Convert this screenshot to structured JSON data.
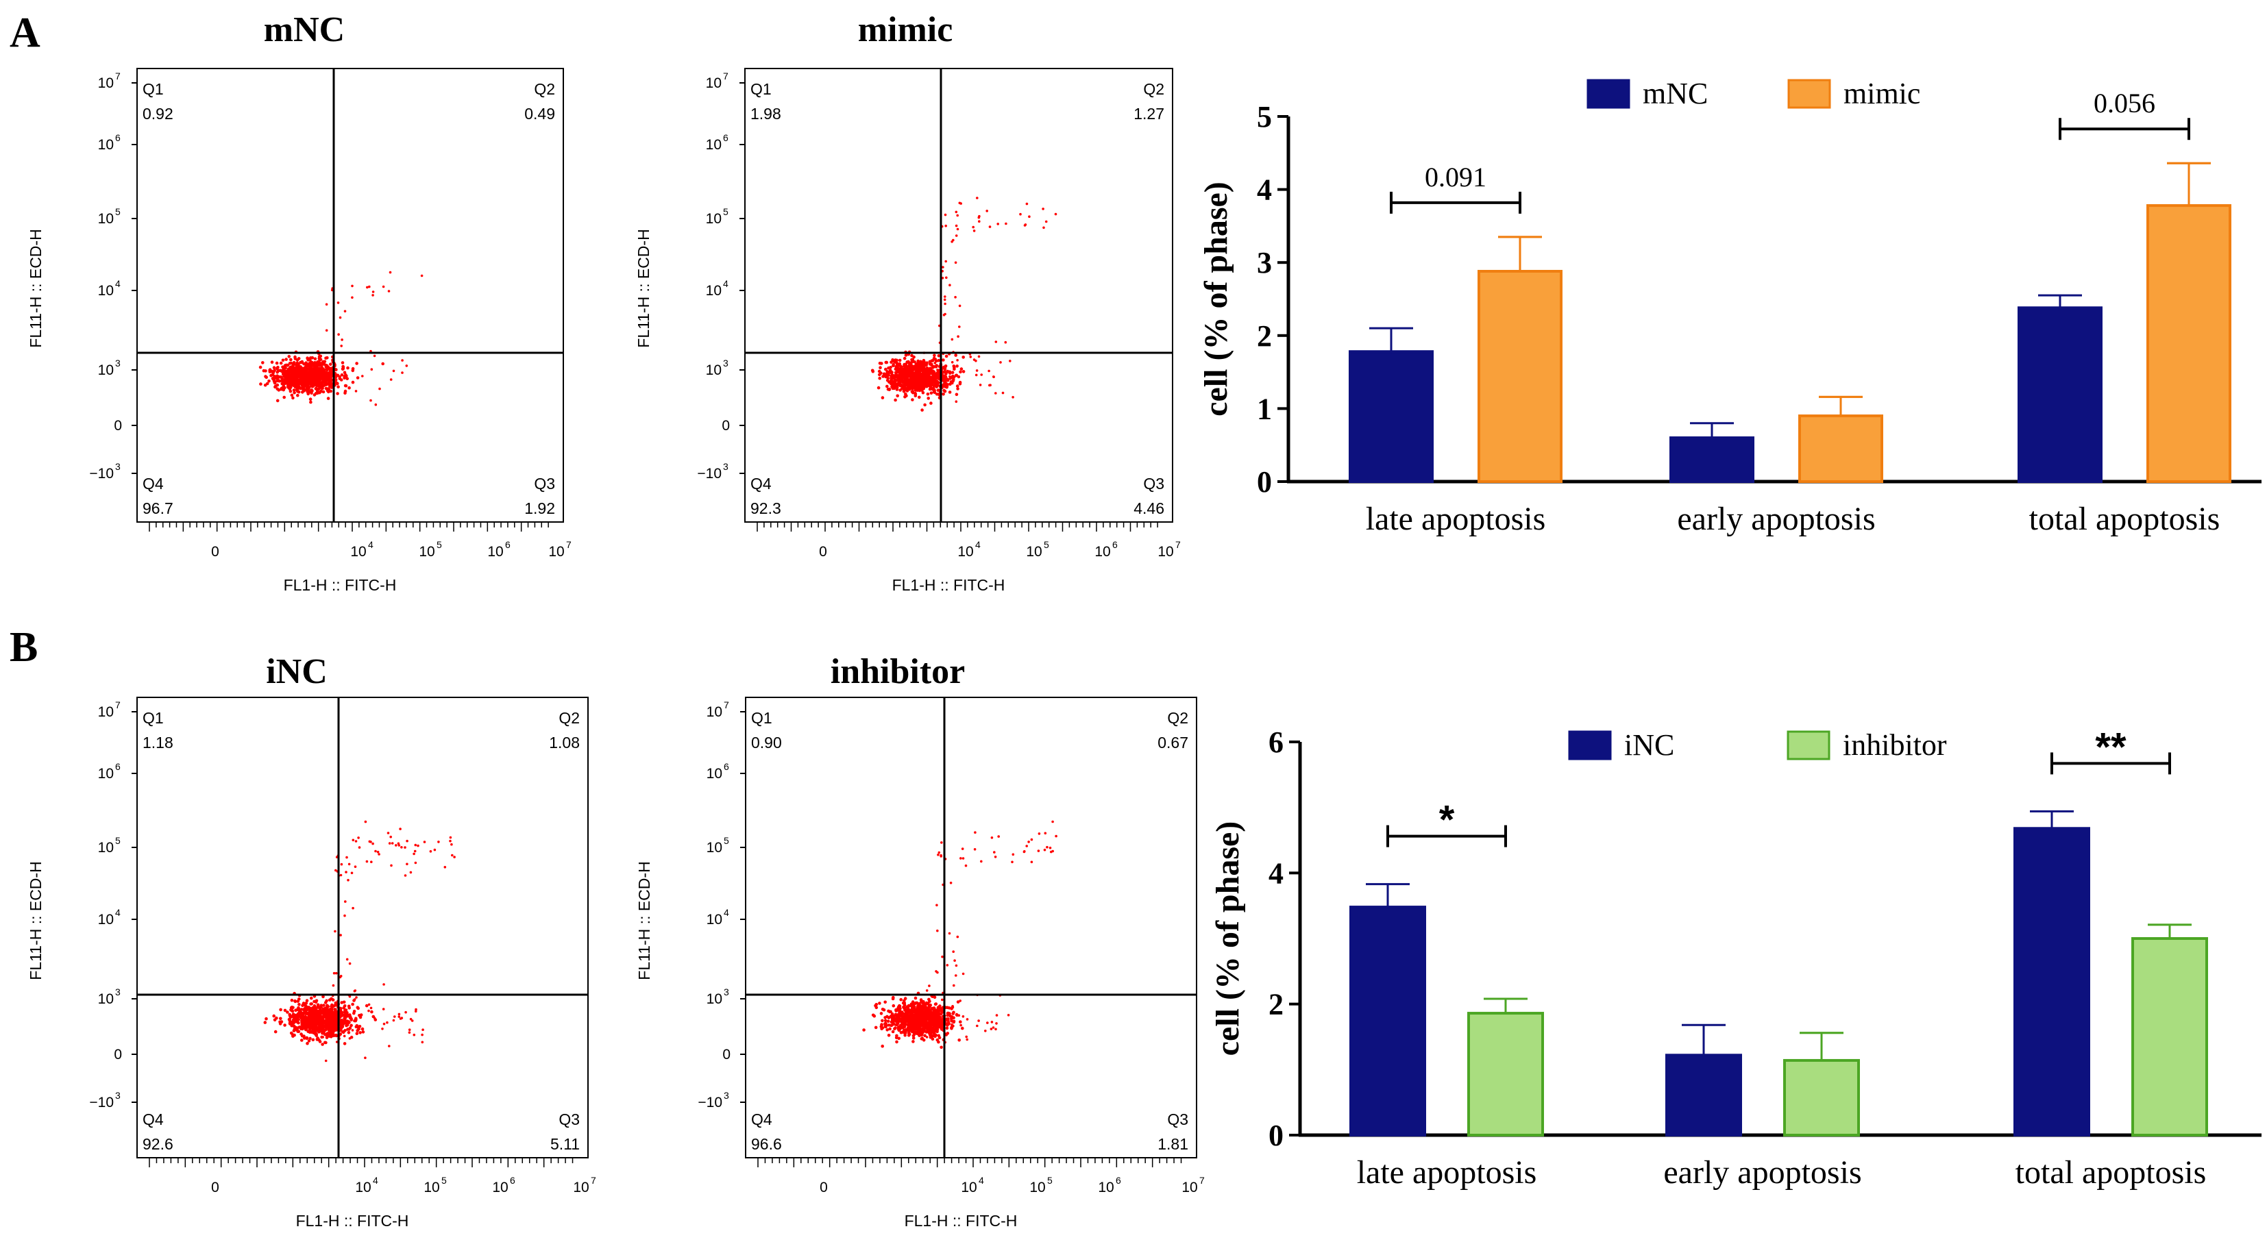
{
  "panel_labels": [
    "A",
    "B"
  ],
  "flow_plots": [
    {
      "title": "mNC",
      "xlabel": "FL1-H :: FITC-H",
      "ylabel": "FL11-H :: ECD-H",
      "quadrants": {
        "Q1": {
          "name": "Q1",
          "value": "0.92"
        },
        "Q2": {
          "name": "Q2",
          "value": "0.49"
        },
        "Q3": {
          "name": "Q3",
          "value": "1.92"
        },
        "Q4": {
          "name": "Q4",
          "value": "96.7"
        }
      }
    },
    {
      "title": "mimic",
      "xlabel": "FL1-H :: FITC-H",
      "ylabel": "FL11-H :: ECD-H",
      "quadrants": {
        "Q1": {
          "name": "Q1",
          "value": "1.98"
        },
        "Q2": {
          "name": "Q2",
          "value": "1.27"
        },
        "Q3": {
          "name": "Q3",
          "value": "4.46"
        },
        "Q4": {
          "name": "Q4",
          "value": "92.3"
        }
      }
    },
    {
      "title": "iNC",
      "xlabel": "FL1-H :: FITC-H",
      "ylabel": "FL11-H :: ECD-H",
      "quadrants": {
        "Q1": {
          "name": "Q1",
          "value": "1.18"
        },
        "Q2": {
          "name": "Q2",
          "value": "1.08"
        },
        "Q3": {
          "name": "Q3",
          "value": "5.11"
        },
        "Q4": {
          "name": "Q4",
          "value": "92.6"
        }
      }
    },
    {
      "title": "inhibitor",
      "xlabel": "FL1-H :: FITC-H",
      "ylabel": "FL11-H :: ECD-H",
      "quadrants": {
        "Q1": {
          "name": "Q1",
          "value": "0.90"
        },
        "Q2": {
          "name": "Q2",
          "value": "0.67"
        },
        "Q3": {
          "name": "Q3",
          "value": "1.81"
        },
        "Q4": {
          "name": "Q4",
          "value": "96.6"
        }
      }
    }
  ],
  "flow_axis_ticks": {
    "y": [
      {
        "base": "10",
        "exp": "7"
      },
      {
        "base": "10",
        "exp": "6"
      },
      {
        "base": "10",
        "exp": "5"
      },
      {
        "base": "10",
        "exp": "4"
      },
      {
        "base": "10",
        "exp": "3"
      },
      {
        "base": "0",
        "exp": ""
      },
      {
        "base": "−10",
        "exp": "3"
      }
    ],
    "x": [
      {
        "base": "0",
        "exp": ""
      },
      {
        "base": "10",
        "exp": "4"
      },
      {
        "base": "10",
        "exp": "5"
      },
      {
        "base": "10",
        "exp": "6"
      },
      {
        "base": "10",
        "exp": "7"
      }
    ]
  },
  "chart_data": [
    {
      "type": "bar",
      "panel": "A",
      "categories": [
        "late apoptosis",
        "early apoptosis",
        "total apoptosis"
      ],
      "series": [
        {
          "name": "mNC",
          "color": "#0d117e",
          "values": [
            1.78,
            0.6,
            2.38
          ],
          "errors": [
            0.32,
            0.2,
            0.17
          ]
        },
        {
          "name": "mimic",
          "color": "#f9a03a",
          "values": [
            2.88,
            0.9,
            3.78
          ],
          "errors": [
            0.47,
            0.26,
            0.58
          ]
        }
      ],
      "ylabel": "cell (% of phase)",
      "ylim": [
        0,
        5
      ],
      "yticks": [
        "0",
        "1",
        "2",
        "3",
        "4",
        "5"
      ],
      "annotations": [
        {
          "category": "late apoptosis",
          "text": "0.091"
        },
        {
          "category": "total apoptosis",
          "text": "0.056"
        }
      ]
    },
    {
      "type": "bar",
      "panel": "B",
      "categories": [
        "late apoptosis",
        "early apoptosis",
        "total apoptosis"
      ],
      "series": [
        {
          "name": "iNC",
          "color": "#0d117e",
          "values": [
            3.48,
            1.22,
            4.68
          ],
          "errors": [
            0.35,
            0.46,
            0.26
          ]
        },
        {
          "name": "inhibitor",
          "color": "#a9dd7f",
          "values": [
            1.86,
            1.14,
            3.0
          ],
          "errors": [
            0.22,
            0.42,
            0.21
          ]
        }
      ],
      "ylabel": "cell (% of phase)",
      "ylim": [
        0,
        6
      ],
      "yticks": [
        "0",
        "2",
        "4",
        "6"
      ],
      "annotations": [
        {
          "category": "late apoptosis",
          "text": "*"
        },
        {
          "category": "total apoptosis",
          "text": "**"
        }
      ]
    }
  ]
}
